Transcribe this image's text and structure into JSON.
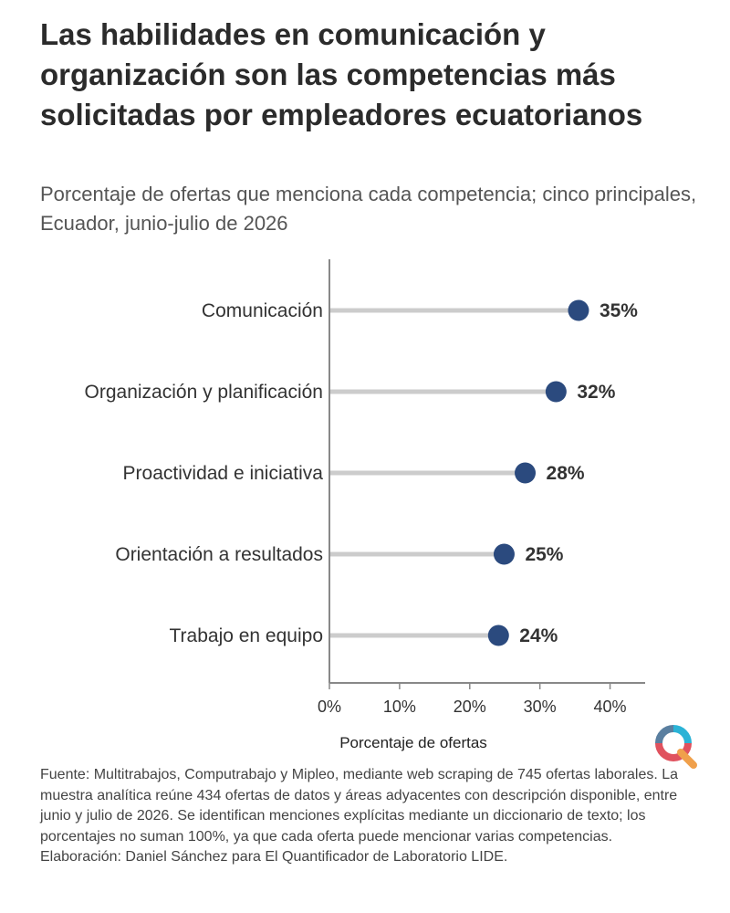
{
  "header": {
    "title": "Las habilidades en comunicación y organización son las competencias más solicitadas por empleadores ecuatorianos",
    "subtitle": "Porcentaje de ofertas que menciona cada competencia; cinco principales, Ecuador, junio-julio de 2026"
  },
  "chart_data": {
    "type": "lollipop",
    "categories": [
      "Comunicación",
      "Organización y planificación",
      "Proactividad e iniciativa",
      "Orientación a resultados",
      "Trabajo en equipo"
    ],
    "values": [
      35.5,
      32.3,
      27.9,
      24.9,
      24.1
    ],
    "value_labels": [
      "35%",
      "32%",
      "28%",
      "25%",
      "24%"
    ],
    "xlabel": "Porcentaje de ofertas",
    "xlim": [
      0,
      45
    ],
    "xticks": [
      0,
      10,
      20,
      30,
      40
    ],
    "xtick_labels": [
      "0%",
      "10%",
      "20%",
      "30%",
      "40%"
    ],
    "grid": false,
    "colors": {
      "dot": "#2b4a7e",
      "stem": "#cccccc",
      "axis": "#888888"
    }
  },
  "footer": {
    "source": "Fuente: Multitrabajos, Computrabajo y Mipleo, mediante web scraping de 745 ofertas laborales. La muestra analítica reúne 434 ofertas de datos y áreas adyacentes con descripción disponible, entre junio y julio de 2026. Se identifican menciones explícitas mediante un diccionario de texto; los porcentajes no suman 100%, ya que cada oferta puede mencionar varias competencias. Elaboración: Daniel Sánchez para El Quantificador de Laboratorio LIDE."
  },
  "logo": {
    "colors": [
      "#5a7fa0",
      "#2bb3d6",
      "#e0525e",
      "#f0a04b"
    ]
  }
}
